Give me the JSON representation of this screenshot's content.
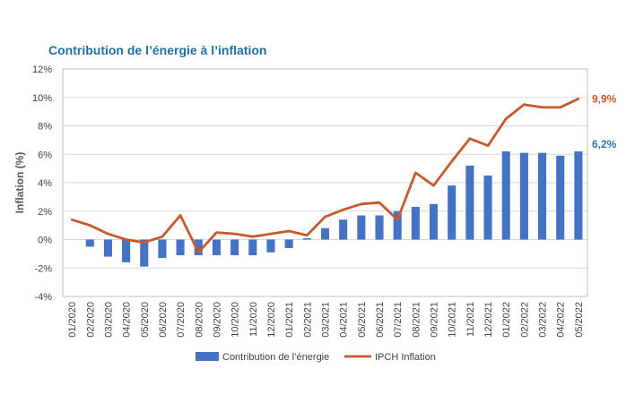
{
  "chart_data": {
    "type": "bar+line",
    "title": "Contribution de l’énergie à l’inflation",
    "ylabel": "Inflation (%)",
    "xlabel": "",
    "ylim": [
      -4,
      12
    ],
    "yticks": [
      -4,
      -2,
      0,
      2,
      4,
      6,
      8,
      10,
      12
    ],
    "ytick_labels": [
      "-4%",
      "-2%",
      "0%",
      "2%",
      "4%",
      "6%",
      "8%",
      "10%",
      "12%"
    ],
    "grid": true,
    "legend_position": "bottom",
    "categories": [
      "01/2020",
      "02/2020",
      "03/2020",
      "04/2020",
      "05/2020",
      "06/2020",
      "07/2020",
      "08/2020",
      "09/2020",
      "10/2020",
      "11/2020",
      "12/2020",
      "01/2021",
      "02/2021",
      "03/2021",
      "04/2021",
      "05/2021",
      "06/2021",
      "07/2021",
      "08/2021",
      "09/2021",
      "10/2021",
      "11/2021",
      "12/2021",
      "01/2022",
      "02/2022",
      "03/2022",
      "04/2022",
      "05/2022"
    ],
    "series": [
      {
        "name": "Contribution de l’énergie",
        "kind": "bar",
        "color": "#4472c4",
        "values": [
          0.0,
          -0.5,
          -1.2,
          -1.6,
          -1.9,
          -1.3,
          -1.1,
          -1.1,
          -1.1,
          -1.1,
          -1.1,
          -0.9,
          -0.6,
          0.1,
          0.8,
          1.4,
          1.7,
          1.7,
          2.0,
          2.3,
          2.5,
          3.8,
          5.2,
          4.5,
          6.2,
          6.1,
          6.1,
          5.9,
          6.2
        ],
        "end_label": "6,2%",
        "end_label_color": "#2e75b6"
      },
      {
        "name": "IPCH Inflation",
        "kind": "line",
        "color": "#c55a2b",
        "values": [
          1.4,
          1.0,
          0.4,
          0.0,
          -0.2,
          0.2,
          1.7,
          -0.9,
          0.5,
          0.4,
          0.2,
          0.4,
          0.6,
          0.3,
          1.6,
          2.1,
          2.5,
          2.6,
          1.4,
          4.7,
          3.8,
          5.5,
          7.1,
          6.6,
          8.5,
          9.5,
          9.3,
          9.3,
          9.9
        ],
        "end_label": "9,9%",
        "end_label_color": "#c55a2b"
      }
    ]
  }
}
